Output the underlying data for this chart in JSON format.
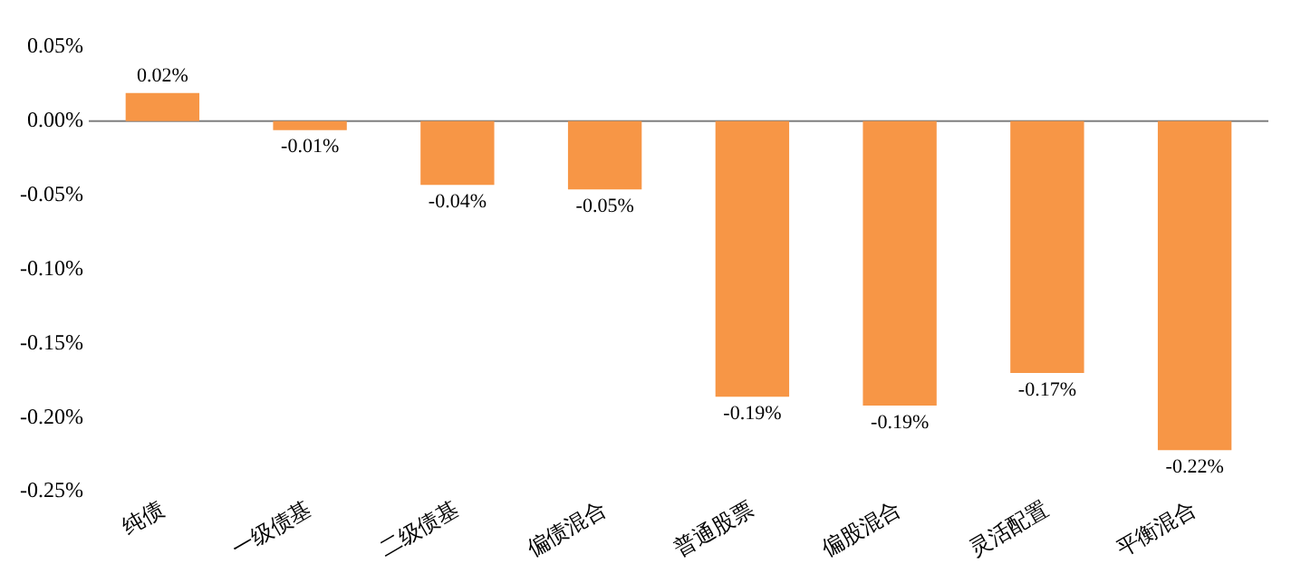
{
  "chart_data": {
    "type": "bar",
    "categories": [
      "纯债",
      "一级债基",
      "二级债基",
      "偏债混合",
      "普通股票",
      "偏股混合",
      "灵活配置",
      "平衡混合"
    ],
    "values": [
      0.019,
      -0.006,
      -0.043,
      -0.046,
      -0.186,
      -0.192,
      -0.17,
      -0.222
    ],
    "value_labels": [
      "0.02%",
      "-0.01%",
      "-0.04%",
      "-0.05%",
      "-0.19%",
      "-0.19%",
      "-0.17%",
      "-0.22%"
    ],
    "color": "#f79646",
    "ylim": [
      -0.25,
      0.05
    ],
    "yticks": [
      {
        "value": 0.05,
        "label": "0.05%"
      },
      {
        "value": 0,
        "label": "0.00%"
      },
      {
        "value": -0.05,
        "label": "-0.05%"
      },
      {
        "value": -0.1,
        "label": "-0.10%"
      },
      {
        "value": -0.15,
        "label": "-0.15%"
      },
      {
        "value": -0.2,
        "label": "-0.20%"
      },
      {
        "value": -0.25,
        "label": "-0.25%"
      }
    ],
    "ref_lines": [
      {
        "axis": "y",
        "value": 0,
        "color": "#7f7f7f"
      }
    ],
    "grid": false,
    "legend": false
  }
}
